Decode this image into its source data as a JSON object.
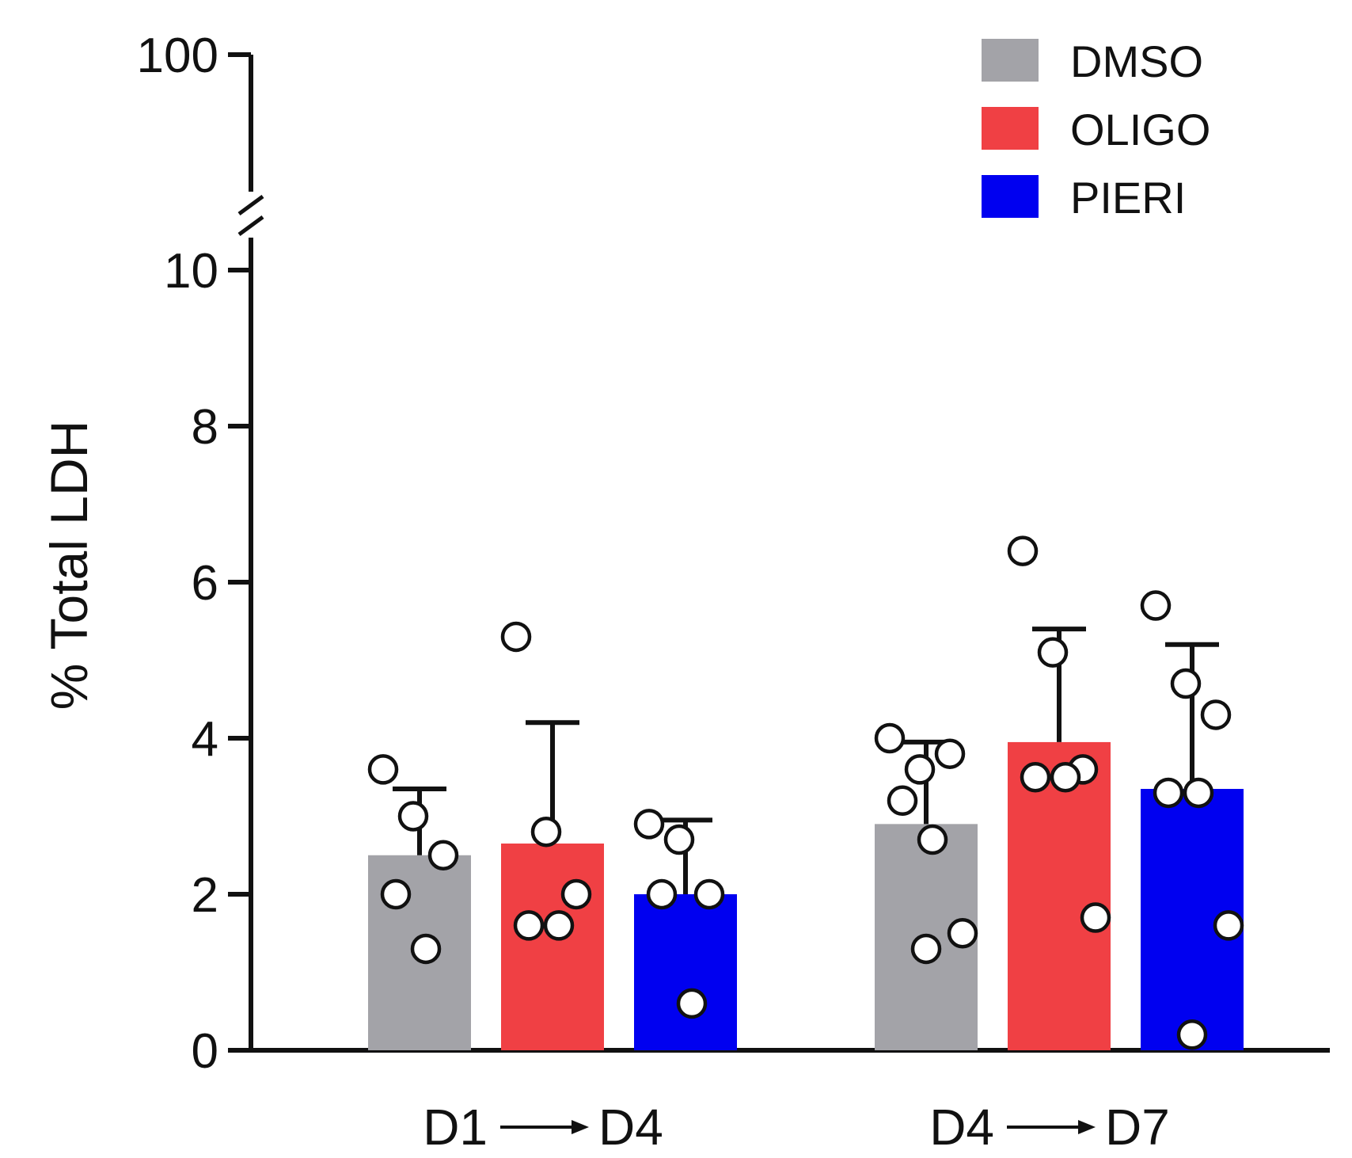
{
  "chart_data": {
    "type": "bar",
    "title": "",
    "xlabel": "",
    "ylabel": "% Total LDH",
    "ylim": [
      0,
      10
    ],
    "y_break": {
      "lower_range": [
        0,
        10
      ],
      "upper_ticks": [
        100
      ]
    },
    "yticks_lower": [
      "0",
      "2",
      "4",
      "6",
      "8",
      "10"
    ],
    "ytick_upper": "100",
    "categories": [
      {
        "from": "D1",
        "to": "D4"
      },
      {
        "from": "D4",
        "to": "D7"
      }
    ],
    "series": [
      {
        "name": "DMSO",
        "color": "#a3a3a8",
        "values": [
          2.5,
          2.9
        ],
        "errors": [
          0.85,
          1.05
        ],
        "points": [
          [
            3.6,
            3.0,
            2.5,
            2.0,
            1.3
          ],
          [
            4.0,
            3.6,
            3.8,
            3.2,
            2.7,
            1.5,
            1.3
          ]
        ]
      },
      {
        "name": "OLIGO",
        "color": "#f04044",
        "values": [
          2.65,
          3.95
        ],
        "errors": [
          1.55,
          1.45
        ],
        "points": [
          [
            5.3,
            2.8,
            2.0,
            1.6,
            1.6
          ],
          [
            6.4,
            5.1,
            3.6,
            3.5,
            3.5,
            1.7
          ]
        ]
      },
      {
        "name": "PIERI",
        "color": "#0000f0",
        "values": [
          2.0,
          3.35
        ],
        "errors": [
          0.95,
          1.85
        ],
        "points": [
          [
            2.9,
            2.7,
            2.0,
            2.0,
            0.6
          ],
          [
            5.7,
            4.7,
            4.3,
            3.3,
            3.3,
            1.6,
            0.2
          ]
        ]
      }
    ],
    "legend_position": "top-right"
  }
}
